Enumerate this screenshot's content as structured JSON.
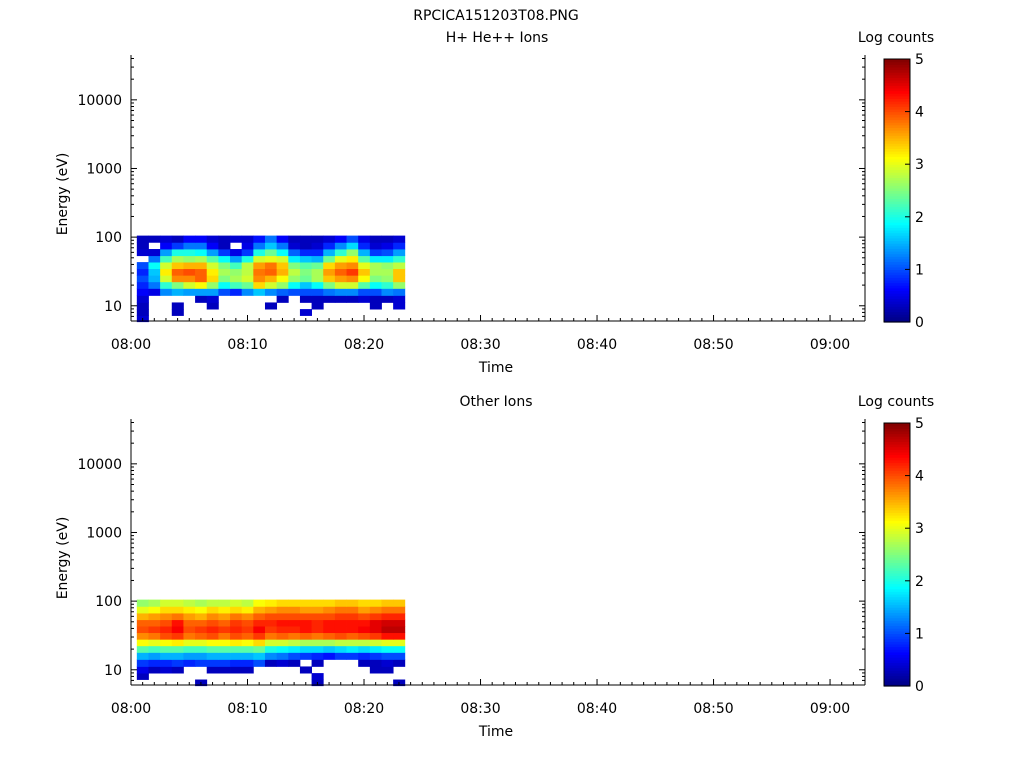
{
  "figure_title": "RPCICA151203T08.PNG",
  "chart_data": [
    {
      "type": "heatmap",
      "title": "H+ He++ Ions",
      "xlabel": "Time",
      "ylabel": "Energy (eV)",
      "y_scale": "log",
      "ylim": [
        6,
        45000
      ],
      "xlim": [
        "08:00",
        "09:03"
      ],
      "x_ticks": [
        "08:00",
        "08:10",
        "08:20",
        "08:30",
        "08:40",
        "08:50",
        "09:00"
      ],
      "y_ticks": [
        "10",
        "100",
        "1000",
        "10000"
      ],
      "colorbar": {
        "label": "Log counts",
        "range": [
          0,
          5
        ],
        "ticks": [
          "0",
          "1",
          "2",
          "3",
          "4",
          "5"
        ],
        "colormap": "jet"
      },
      "energy_bins_eV": [
        6.5,
        8,
        10,
        12.5,
        16,
        20,
        25,
        31,
        39,
        48,
        60,
        75,
        94
      ],
      "time_bins": [
        "08:01",
        "08:02",
        "08:03",
        "08:04",
        "08:05",
        "08:06",
        "08:07",
        "08:08",
        "08:09",
        "08:10",
        "08:11",
        "08:12",
        "08:13",
        "08:14",
        "08:15",
        "08:16",
        "08:17",
        "08:18",
        "08:19",
        "08:20",
        "08:21",
        "08:22",
        "08:23"
      ],
      "log_counts": [
        [
          0.4,
          null,
          null,
          null,
          null,
          null,
          null,
          null,
          null,
          null,
          null,
          null,
          null,
          null,
          null,
          null,
          null,
          null,
          null,
          null,
          null,
          null,
          null
        ],
        [
          0.3,
          null,
          null,
          0.3,
          null,
          null,
          null,
          null,
          null,
          null,
          null,
          null,
          null,
          null,
          0.4,
          null,
          null,
          null,
          null,
          null,
          null,
          null,
          null
        ],
        [
          0.3,
          null,
          null,
          0.3,
          null,
          null,
          0.3,
          null,
          null,
          null,
          null,
          0.3,
          null,
          null,
          null,
          0.3,
          null,
          null,
          null,
          null,
          0.3,
          null,
          0.4
        ],
        [
          0.4,
          null,
          null,
          null,
          null,
          0.3,
          0.4,
          null,
          null,
          null,
          null,
          null,
          0.3,
          null,
          0.3,
          0.3,
          0.3,
          0.3,
          0.3,
          0.4,
          0.3,
          0.3,
          0.4
        ],
        [
          0.6,
          0.5,
          1.3,
          1.5,
          1.4,
          1.4,
          1.4,
          1.0,
          0.8,
          1.3,
          1.6,
          1.3,
          1.1,
          1.0,
          1.0,
          1.0,
          1.2,
          1.3,
          1.3,
          1.0,
          1.0,
          1.3,
          1.2
        ],
        [
          0.8,
          1.2,
          2.1,
          2.5,
          2.9,
          3.1,
          2.6,
          1.9,
          2.2,
          2.4,
          3.3,
          2.9,
          2.6,
          1.9,
          1.6,
          1.9,
          2.5,
          2.9,
          2.9,
          2.3,
          1.9,
          2.1,
          2.6
        ],
        [
          1.0,
          1.5,
          2.9,
          3.7,
          3.7,
          3.9,
          3.3,
          2.5,
          2.7,
          2.9,
          3.7,
          3.5,
          3.1,
          2.6,
          2.4,
          2.7,
          3.4,
          3.6,
          3.7,
          3.1,
          2.5,
          2.6,
          3.4
        ],
        [
          0.8,
          1.6,
          3.2,
          3.9,
          4.0,
          3.9,
          3.2,
          2.7,
          2.6,
          2.8,
          3.8,
          3.9,
          3.5,
          2.8,
          2.5,
          2.7,
          3.6,
          3.9,
          4.1,
          3.4,
          2.7,
          2.7,
          3.4
        ],
        [
          1.0,
          1.9,
          2.9,
          3.4,
          3.5,
          3.5,
          2.9,
          2.5,
          2.2,
          2.8,
          3.6,
          3.8,
          3.4,
          2.5,
          2.3,
          2.4,
          3.3,
          3.6,
          3.7,
          3.0,
          2.7,
          2.6,
          2.8
        ],
        [
          null,
          1.2,
          2.2,
          2.7,
          2.6,
          2.7,
          2.3,
          1.9,
          1.4,
          2.0,
          2.9,
          3.0,
          2.9,
          1.8,
          1.6,
          1.5,
          2.4,
          3.0,
          3.2,
          2.3,
          1.8,
          1.8,
          2.1
        ],
        [
          0.4,
          0.4,
          1.4,
          2.0,
          2.0,
          1.9,
          1.4,
          0.9,
          0.5,
          0.9,
          2.0,
          2.4,
          1.9,
          1.1,
          0.8,
          0.8,
          1.5,
          2.1,
          2.6,
          1.5,
          0.9,
          1.0,
          1.4
        ],
        [
          0.3,
          null,
          0.6,
          0.9,
          1.2,
          1.2,
          0.6,
          0.3,
          null,
          0.5,
          1.2,
          1.6,
          1.2,
          0.4,
          0.3,
          0.4,
          0.8,
          1.3,
          1.7,
          0.8,
          0.4,
          0.5,
          0.8
        ],
        [
          0.3,
          0.3,
          0.4,
          0.3,
          0.6,
          0.6,
          0.4,
          0.3,
          0.4,
          0.4,
          0.7,
          1.2,
          0.6,
          0.3,
          0.3,
          0.3,
          0.4,
          0.6,
          1.0,
          0.5,
          0.3,
          0.3,
          0.4
        ]
      ]
    },
    {
      "type": "heatmap",
      "title": "Other Ions",
      "xlabel": "Time",
      "ylabel": "Energy (eV)",
      "y_scale": "log",
      "ylim": [
        6,
        45000
      ],
      "xlim": [
        "08:00",
        "09:03"
      ],
      "x_ticks": [
        "08:00",
        "08:10",
        "08:20",
        "08:30",
        "08:40",
        "08:50",
        "09:00"
      ],
      "y_ticks": [
        "10",
        "100",
        "1000",
        "10000"
      ],
      "colorbar": {
        "label": "Log counts",
        "range": [
          0,
          5
        ],
        "ticks": [
          "0",
          "1",
          "2",
          "3",
          "4",
          "5"
        ],
        "colormap": "jet"
      },
      "energy_bins_eV": [
        6.5,
        8,
        10,
        12.5,
        16,
        20,
        25,
        31,
        39,
        48,
        60,
        75,
        94
      ],
      "time_bins": [
        "08:01",
        "08:02",
        "08:03",
        "08:04",
        "08:05",
        "08:06",
        "08:07",
        "08:08",
        "08:09",
        "08:10",
        "08:11",
        "08:12",
        "08:13",
        "08:14",
        "08:15",
        "08:16",
        "08:17",
        "08:18",
        "08:19",
        "08:20",
        "08:21",
        "08:22",
        "08:23"
      ],
      "log_counts": [
        [
          null,
          null,
          null,
          null,
          null,
          0.3,
          null,
          null,
          null,
          null,
          null,
          null,
          null,
          null,
          null,
          0.3,
          null,
          null,
          null,
          null,
          null,
          null,
          0.3
        ],
        [
          0.3,
          null,
          null,
          null,
          null,
          null,
          null,
          null,
          null,
          null,
          null,
          null,
          null,
          null,
          null,
          0.4,
          null,
          null,
          null,
          null,
          null,
          null,
          null
        ],
        [
          0.5,
          0.3,
          0.4,
          0.3,
          null,
          null,
          0.3,
          0.3,
          0.3,
          0.3,
          null,
          null,
          null,
          null,
          0.3,
          null,
          null,
          null,
          null,
          null,
          0.3,
          0.3,
          null
        ],
        [
          0.9,
          0.8,
          0.8,
          0.9,
          0.8,
          0.9,
          0.9,
          0.9,
          0.8,
          0.8,
          1.0,
          0.3,
          0.4,
          0.3,
          null,
          0.3,
          null,
          null,
          null,
          0.3,
          0.3,
          0.4,
          0.3
        ],
        [
          1.5,
          1.4,
          1.5,
          1.5,
          1.4,
          1.4,
          1.5,
          1.5,
          1.5,
          1.5,
          1.6,
          1.3,
          1.2,
          1.0,
          0.9,
          0.8,
          0.7,
          0.9,
          0.9,
          0.8,
          0.9,
          1.0,
          1.0
        ],
        [
          2.3,
          2.2,
          2.3,
          2.3,
          2.2,
          2.2,
          2.3,
          2.3,
          2.3,
          2.3,
          2.4,
          2.0,
          1.9,
          1.8,
          1.7,
          1.7,
          1.6,
          1.7,
          1.8,
          1.7,
          1.8,
          1.9,
          1.9
        ],
        [
          3.1,
          3.0,
          3.1,
          3.2,
          3.0,
          3.0,
          3.1,
          3.1,
          3.2,
          3.1,
          3.3,
          2.9,
          2.9,
          2.8,
          2.7,
          2.7,
          2.7,
          2.8,
          2.8,
          2.8,
          2.9,
          3.0,
          3.0
        ],
        [
          3.7,
          3.8,
          4.0,
          4.1,
          3.8,
          3.9,
          4.0,
          3.8,
          4.0,
          3.9,
          4.1,
          3.8,
          3.9,
          3.8,
          3.9,
          3.8,
          3.9,
          4.0,
          3.9,
          4.0,
          4.1,
          4.3,
          4.3
        ],
        [
          4.0,
          4.1,
          4.2,
          4.4,
          4.0,
          4.1,
          4.2,
          4.1,
          4.2,
          4.1,
          4.4,
          4.1,
          4.2,
          4.2,
          4.3,
          4.2,
          4.3,
          4.3,
          4.3,
          4.4,
          4.5,
          4.7,
          4.7
        ],
        [
          3.9,
          3.9,
          4.0,
          4.3,
          3.9,
          3.9,
          4.0,
          3.9,
          4.1,
          4.0,
          4.2,
          4.2,
          4.3,
          4.3,
          4.3,
          4.2,
          4.3,
          4.3,
          4.3,
          4.3,
          4.5,
          4.6,
          4.6
        ],
        [
          3.5,
          3.6,
          3.7,
          3.8,
          3.6,
          3.5,
          3.7,
          3.6,
          3.8,
          3.7,
          3.9,
          4.0,
          4.0,
          4.0,
          4.0,
          4.0,
          4.0,
          4.1,
          4.1,
          4.0,
          4.1,
          4.2,
          4.2
        ],
        [
          3.0,
          3.1,
          3.3,
          3.3,
          3.2,
          3.1,
          3.3,
          3.2,
          3.3,
          3.2,
          3.5,
          3.6,
          3.7,
          3.7,
          3.6,
          3.6,
          3.7,
          3.8,
          3.8,
          3.6,
          3.7,
          3.8,
          3.8
        ],
        [
          2.6,
          2.7,
          2.9,
          2.9,
          2.8,
          2.7,
          2.8,
          2.8,
          2.9,
          2.8,
          3.1,
          3.2,
          3.3,
          3.3,
          3.3,
          3.3,
          3.3,
          3.4,
          3.4,
          3.3,
          3.3,
          3.4,
          3.4
        ]
      ]
    }
  ]
}
